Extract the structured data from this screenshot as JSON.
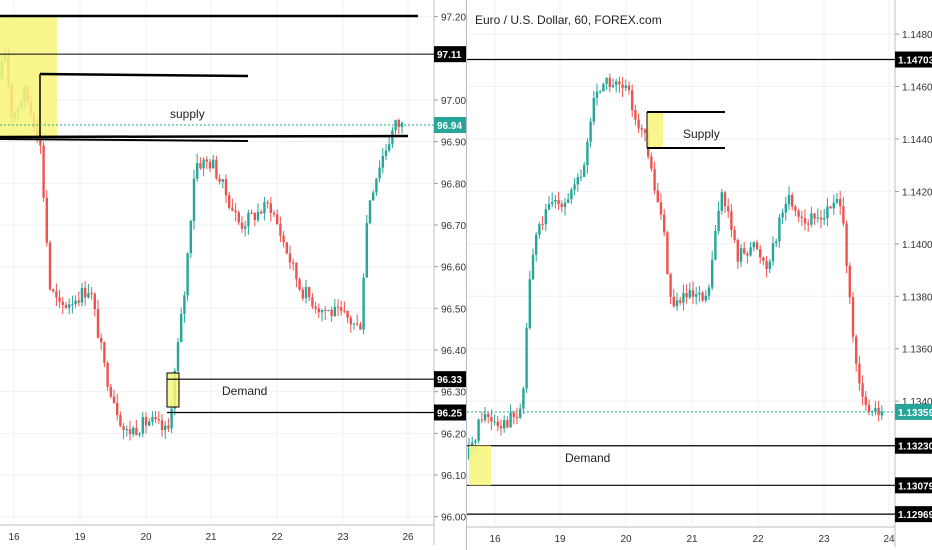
{
  "colors": {
    "up": "#26a69a",
    "down": "#ef5350",
    "zone": "#f8f57a",
    "line": "#000000",
    "grid": "#eef0f3",
    "tag_dark": "#000000",
    "tag_teal": "#26a69a"
  },
  "chart_data": [
    {
      "type": "candlestick",
      "title": "",
      "ylim": [
        95.98,
        97.24
      ],
      "y_ticks": [
        "97.20",
        "97.00",
        "96.90",
        "96.80",
        "96.70",
        "96.60",
        "96.50",
        "96.40",
        "96.30",
        "96.20",
        "96.10",
        "96.00"
      ],
      "x_ticks": [
        "16",
        "19",
        "20",
        "21",
        "22",
        "23",
        "26"
      ],
      "price_tags": [
        {
          "value": "97.11",
          "style": "dark"
        },
        {
          "value": "96.94",
          "style": "teal"
        },
        {
          "value": "96.33",
          "style": "dark"
        },
        {
          "value": "96.25",
          "style": "dark"
        }
      ],
      "annotations": [
        "supply",
        "Demand"
      ],
      "path": [
        [
          0,
          97.05
        ],
        [
          5,
          97.12
        ],
        [
          12,
          96.96
        ],
        [
          25,
          97.02
        ],
        [
          40,
          96.9
        ],
        [
          50,
          96.55
        ],
        [
          60,
          96.5
        ],
        [
          90,
          96.55
        ],
        [
          105,
          96.35
        ],
        [
          125,
          96.2
        ],
        [
          150,
          96.23
        ],
        [
          168,
          96.2
        ],
        [
          175,
          96.35
        ],
        [
          185,
          96.55
        ],
        [
          195,
          96.85
        ],
        [
          212,
          96.85
        ],
        [
          240,
          96.7
        ],
        [
          270,
          96.75
        ],
        [
          300,
          96.55
        ],
        [
          320,
          96.5
        ],
        [
          345,
          96.48
        ],
        [
          360,
          96.45
        ],
        [
          368,
          96.75
        ],
        [
          380,
          96.85
        ],
        [
          395,
          96.94
        ],
        [
          402,
          96.94
        ]
      ],
      "x_range": [
        0,
        415
      ]
    },
    {
      "type": "candlestick",
      "title": "Euro / U.S. Dollar, 60, FOREX.com",
      "ylim": [
        1.1292,
        1.1493
      ],
      "y_ticks": [
        "1.14800",
        "1.14600",
        "1.14400",
        "1.14200",
        "1.14000",
        "1.13800",
        "1.13600",
        "1.13400"
      ],
      "x_ticks": [
        "16",
        "19",
        "20",
        "21",
        "22",
        "23",
        "24"
      ],
      "price_tags": [
        {
          "value": "1.14703",
          "style": "dark"
        },
        {
          "value": "1.13359",
          "style": "teal"
        },
        {
          "value": "1.13230",
          "style": "dark"
        },
        {
          "value": "1.13079",
          "style": "dark"
        },
        {
          "value": "1.12969",
          "style": "dark"
        }
      ],
      "annotations": [
        "Supply",
        "Demand"
      ],
      "path": [
        [
          0,
          1.1318
        ],
        [
          15,
          1.1335
        ],
        [
          35,
          1.1332
        ],
        [
          55,
          1.1335
        ],
        [
          62,
          1.1385
        ],
        [
          70,
          1.1405
        ],
        [
          85,
          1.1415
        ],
        [
          100,
          1.1418
        ],
        [
          115,
          1.1425
        ],
        [
          128,
          1.1458
        ],
        [
          140,
          1.1462
        ],
        [
          160,
          1.1458
        ],
        [
          178,
          1.144
        ],
        [
          185,
          1.1425
        ],
        [
          195,
          1.141
        ],
        [
          205,
          1.1375
        ],
        [
          215,
          1.138
        ],
        [
          240,
          1.1378
        ],
        [
          255,
          1.1422
        ],
        [
          270,
          1.1395
        ],
        [
          285,
          1.14
        ],
        [
          300,
          1.1392
        ],
        [
          320,
          1.1418
        ],
        [
          340,
          1.1408
        ],
        [
          360,
          1.1412
        ],
        [
          375,
          1.1418
        ],
        [
          382,
          1.138
        ],
        [
          388,
          1.1355
        ],
        [
          395,
          1.134
        ],
        [
          405,
          1.1335
        ],
        [
          415,
          1.1336
        ]
      ],
      "x_range": [
        0,
        415
      ]
    }
  ]
}
